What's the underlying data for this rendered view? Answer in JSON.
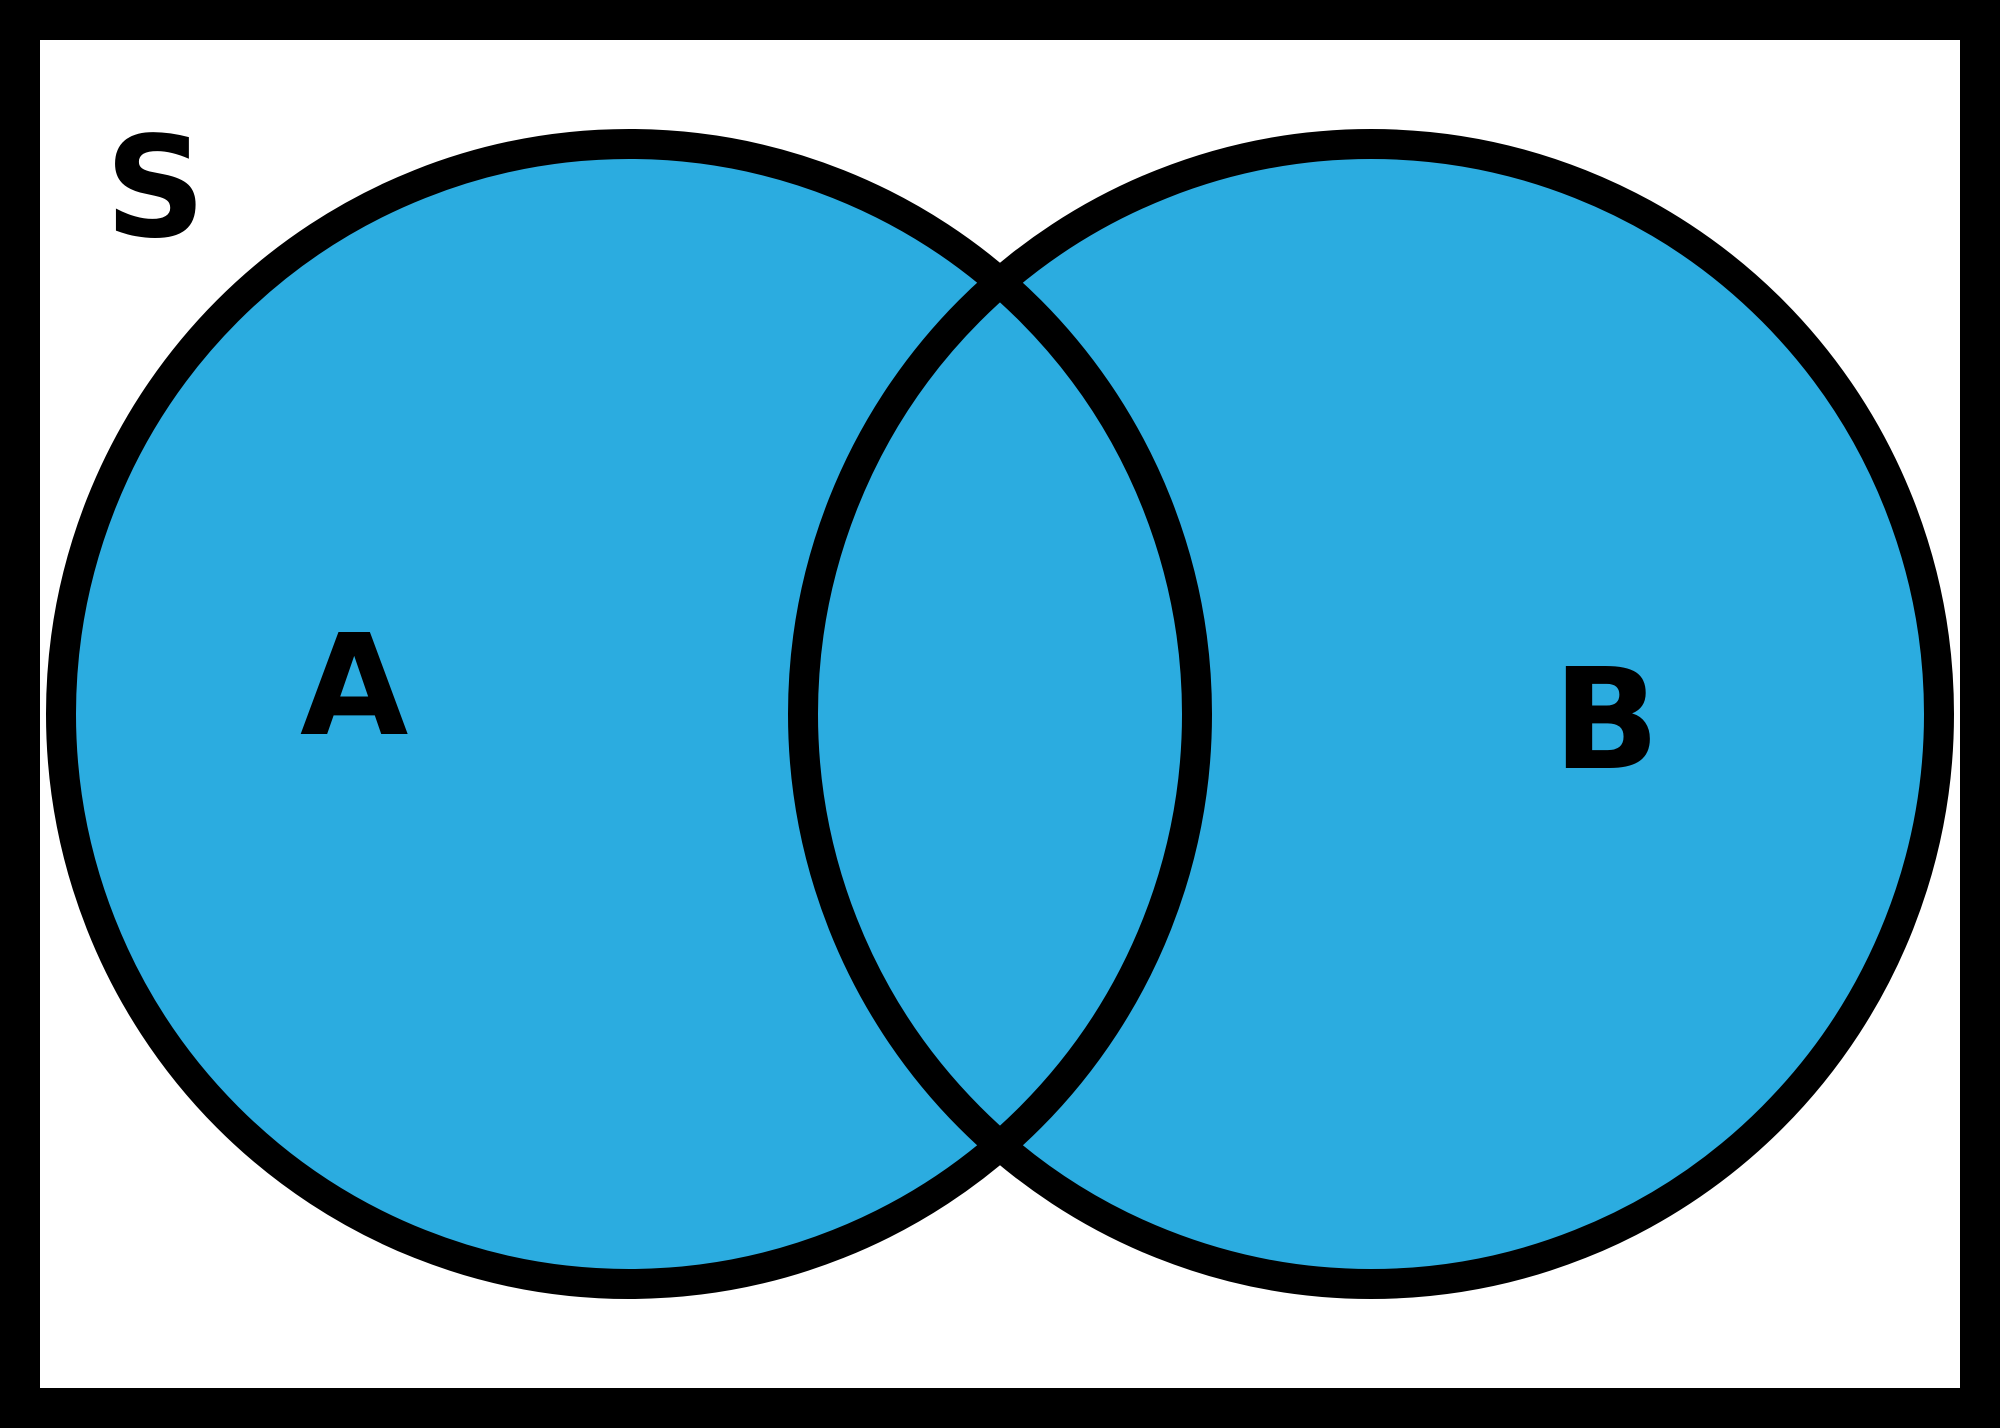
{
  "diagram": {
    "type": "venn",
    "universe_label": "S",
    "sets": [
      {
        "label": "A"
      },
      {
        "label": "B"
      }
    ],
    "shaded_region": "A ∪ B"
  },
  "colors": {
    "fill": "#2bace0",
    "stroke": "#000000",
    "background": "#ffffff"
  }
}
